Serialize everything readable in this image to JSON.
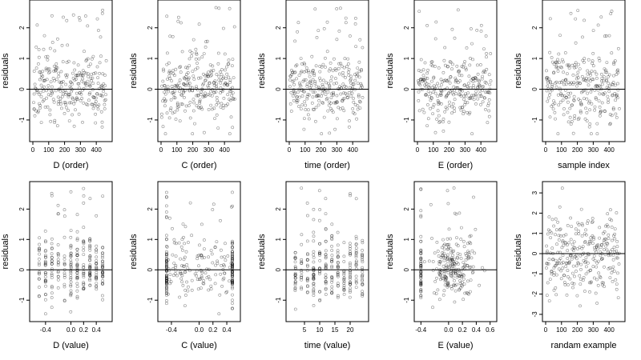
{
  "chart_data": [
    {
      "type": "scatter",
      "xlabel": "D (order)",
      "ylabel": "residuals",
      "xlim": [
        0,
        480
      ],
      "ylim": [
        -1.6,
        2.8
      ],
      "xticks": [
        0,
        100,
        200,
        300,
        400
      ],
      "yticks": [
        -1,
        0,
        1,
        2
      ],
      "reference_line_y": 0,
      "x_kind": "index",
      "seed": 11
    },
    {
      "type": "scatter",
      "xlabel": "C (order)",
      "ylabel": "residuals",
      "xlim": [
        0,
        480
      ],
      "ylim": [
        -1.6,
        2.8
      ],
      "xticks": [
        0,
        100,
        200,
        300,
        400
      ],
      "yticks": [
        -1,
        0,
        1,
        2
      ],
      "reference_line_y": 0,
      "x_kind": "index",
      "seed": 23
    },
    {
      "type": "scatter",
      "xlabel": "time (order)",
      "ylabel": "residuals",
      "xlim": [
        0,
        480
      ],
      "ylim": [
        -1.6,
        2.8
      ],
      "xticks": [
        0,
        100,
        200,
        300,
        400
      ],
      "yticks": [
        -1,
        0,
        1,
        2
      ],
      "reference_line_y": 0,
      "x_kind": "index",
      "seed": 37
    },
    {
      "type": "scatter",
      "xlabel": "E (order)",
      "ylabel": "residuals",
      "xlim": [
        0,
        480
      ],
      "ylim": [
        -1.6,
        2.8
      ],
      "xticks": [
        0,
        100,
        200,
        300,
        400
      ],
      "yticks": [
        -1,
        0,
        1,
        2
      ],
      "reference_line_y": 0,
      "x_kind": "index",
      "seed": 41
    },
    {
      "type": "scatter",
      "xlabel": "sample index",
      "ylabel": "residuals",
      "xlim": [
        0,
        480
      ],
      "ylim": [
        -1.6,
        2.8
      ],
      "xticks": [
        0,
        100,
        200,
        300,
        400
      ],
      "yticks": [
        -1,
        0,
        1,
        2
      ],
      "reference_line_y": 0,
      "x_kind": "index",
      "seed": 53
    },
    {
      "type": "scatter",
      "xlabel": "D (value)",
      "ylabel": "residuals",
      "xlim": [
        -0.6,
        0.6
      ],
      "ylim": [
        -1.6,
        2.8
      ],
      "xticks": [
        -0.4,
        0,
        0.2,
        0.4
      ],
      "xtick_labels": [
        "-0.4",
        "0.0",
        "0.2",
        "0.4"
      ],
      "yticks": [
        -1,
        0,
        1,
        2
      ],
      "reference_line_y": 0,
      "x_kind": "discrete",
      "x_levels": [
        -0.5,
        -0.4,
        -0.3,
        -0.2,
        -0.1,
        0,
        0.1,
        0.2,
        0.3,
        0.4,
        0.5
      ],
      "seed": 61
    },
    {
      "type": "scatter",
      "xlabel": "C (value)",
      "ylabel": "residuals",
      "xlim": [
        -0.55,
        0.55
      ],
      "ylim": [
        -1.6,
        2.8
      ],
      "xticks": [
        -0.4,
        0,
        0.2,
        0.4
      ],
      "xtick_labels": [
        "-0.4",
        "0.0",
        "0.2",
        "0.4"
      ],
      "yticks": [
        -1,
        0,
        1,
        2
      ],
      "reference_line_y": 0,
      "x_kind": "edges",
      "x_edges": [
        -0.47,
        0.48
      ],
      "seed": 71
    },
    {
      "type": "scatter",
      "xlabel": "time (value)",
      "ylabel": "residuals",
      "xlim": [
        0,
        25
      ],
      "ylim": [
        -1.6,
        2.8
      ],
      "xticks": [
        5,
        10,
        15,
        20
      ],
      "yticks": [
        -1,
        0,
        1,
        2
      ],
      "reference_line_y": 0,
      "x_kind": "discrete",
      "x_levels": [
        2,
        4,
        6,
        8,
        10,
        12,
        14,
        16,
        18,
        20,
        22,
        24
      ],
      "seed": 83
    },
    {
      "type": "scatter",
      "xlabel": "E (value)",
      "ylabel": "residuals",
      "xlim": [
        -0.45,
        0.65
      ],
      "ylim": [
        -1.6,
        2.8
      ],
      "xticks": [
        -0.4,
        0,
        0.2,
        0.4,
        0.6
      ],
      "xtick_labels": [
        "-0.4",
        "0.0",
        "0.2",
        "0.4",
        "0.6"
      ],
      "yticks": [
        -1,
        0,
        1,
        2
      ],
      "reference_line_y": 0,
      "x_kind": "skewed",
      "seed": 97
    },
    {
      "type": "scatter",
      "xlabel": "randam example",
      "ylabel": "residuals",
      "xlim": [
        0,
        480
      ],
      "ylim": [
        -3.2,
        3.4
      ],
      "xticks": [
        0,
        100,
        200,
        300,
        400
      ],
      "yticks": [
        -3,
        -2,
        -1,
        0,
        1,
        2,
        3
      ],
      "reference_line_y": 0,
      "x_kind": "index",
      "wide": true,
      "seed": 101
    }
  ]
}
